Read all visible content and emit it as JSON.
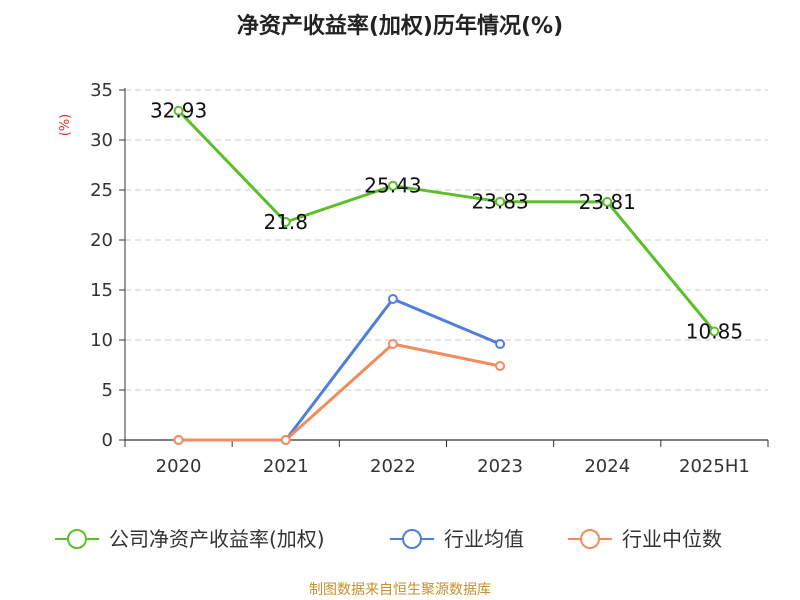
{
  "chart_data": {
    "type": "line",
    "title": "净资产收益率(加权)历年情况(%)",
    "ylabel": "(%)",
    "categories": [
      "2020",
      "2021",
      "2022",
      "2023",
      "2024",
      "2025H1"
    ],
    "yticks": [
      "0",
      "5",
      "10",
      "15",
      "20",
      "25",
      "30",
      "35"
    ],
    "ylim": [
      0,
      35
    ],
    "grid": true,
    "legend_position": "bottom",
    "series": [
      {
        "name": "公司净资产收益率(加权)",
        "color": "#5cbf2a",
        "values": [
          32.93,
          21.8,
          25.43,
          23.83,
          23.81,
          10.85
        ],
        "labels": [
          "32.93",
          "21.8",
          "25.43",
          "23.83",
          "23.81",
          "10.85"
        ]
      },
      {
        "name": "行业均值",
        "color": "#4f7fdc",
        "values": [
          0,
          0,
          14.1,
          9.6,
          null,
          null
        ]
      },
      {
        "name": "行业中位数",
        "color": "#f28c5c",
        "values": [
          0,
          0,
          9.6,
          7.4,
          null,
          null
        ]
      }
    ]
  },
  "source": "制图数据来自恒生聚源数据库"
}
